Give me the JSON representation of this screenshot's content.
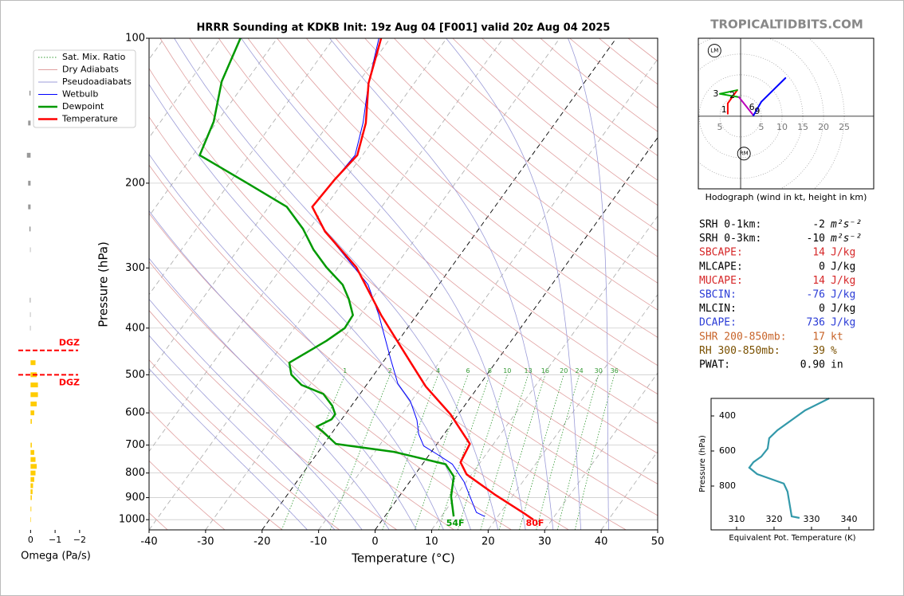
{
  "brand": "TROPICALTIDBITS.COM",
  "chart_data": [
    {
      "type": "skewt",
      "title": "HRRR Sounding at KDKB Init: 19z Aug 04 [F001] valid 20z Aug 04 2025",
      "xlabel": "Temperature (°C)",
      "ylabel": "Pressure (hPa)",
      "xlim": [
        -40,
        50
      ],
      "ylim": [
        1050,
        100
      ],
      "log_y": true,
      "grid": true,
      "legend": "upper left",
      "xticks": [
        -40,
        -30,
        -20,
        -10,
        0,
        10,
        20,
        30,
        40,
        50
      ],
      "yticks": [
        100,
        200,
        300,
        400,
        500,
        600,
        700,
        800,
        900,
        1000
      ],
      "reference_lines": [
        {
          "name": "Sat. Mix. Ratio",
          "kind": "mixing",
          "color": "#339933",
          "values": [
            1,
            2,
            4,
            6,
            8,
            10,
            13,
            16,
            20,
            24,
            30,
            36
          ]
        },
        {
          "name": "Dry Adiabats",
          "kind": "dry",
          "color": "#e0a0a0",
          "values": [
            -40,
            -30,
            -20,
            -10,
            0,
            10,
            20,
            30,
            40,
            50,
            60,
            70,
            80,
            90,
            100,
            110,
            120,
            130,
            140,
            150,
            160,
            170,
            180,
            190,
            200,
            210,
            220
          ]
        },
        {
          "name": "Pseudoadiabats",
          "kind": "moist",
          "color": "#9c9cd8",
          "values": [
            -15,
            -10,
            -5,
            0,
            5,
            10,
            15,
            20,
            25,
            30,
            35,
            40
          ]
        }
      ],
      "isotherms": {
        "values": [
          -100,
          -90,
          -80,
          -70,
          -60,
          -50,
          -40,
          -30,
          -20,
          -10,
          0,
          10,
          20,
          30,
          40
        ],
        "color": "#aaaaaa",
        "highlight": [
          -20,
          0
        ],
        "highlight_color": "#000000"
      },
      "series": [
        {
          "name": "Wetbulb",
          "color": "#0000ff",
          "width": 1,
          "x": [
            -62,
            -58.1,
            -54,
            -51.3,
            -51.8,
            -52.3,
            -46.9,
            -37.2,
            -32.5,
            -26.7,
            -19.1,
            -14.6,
            -10.2,
            -6.6,
            -4.5,
            -2.1,
            1.3,
            5.3,
            9.6,
            15.7,
            17.7
          ],
          "values": [
            100,
            124,
            150,
            175,
            196,
            224,
            252,
            299,
            325,
            376,
            463,
            522,
            567,
            621,
            664,
            703,
            731,
            767,
            834,
            966,
            985
          ]
        },
        {
          "name": "Dewpoint",
          "color": "#009900",
          "width": 2.5,
          "end_label": "54F",
          "x": [
            -86.5,
            -84.3,
            -80.6,
            -78.8,
            -66.8,
            -56.8,
            -51.1,
            -46.6,
            -42.1,
            -37,
            -34.1,
            -31.3,
            -31.1,
            -32.7,
            -36.5,
            -34.6,
            -31.5,
            -26.5,
            -23.4,
            -21.8,
            -21.8,
            -23.5,
            -21.8,
            -17.9,
            -6.6,
            4.1,
            7.1,
            9.2,
            12.2
          ],
          "values": [
            100,
            123,
            149,
            175,
            200,
            224,
            249,
            275,
            299,
            325,
            348,
            376,
            400,
            425,
            472,
            500,
            525,
            548,
            580,
            604,
            619,
            641,
            656,
            696,
            723,
            767,
            813,
            895,
            985
          ]
        },
        {
          "name": "Temperature",
          "color": "#ff0000",
          "width": 2.5,
          "end_label": "80F",
          "x": [
            -61.6,
            -58.1,
            -53.5,
            -50.9,
            -51.8,
            -52.3,
            -46.9,
            -36.8,
            -26.3,
            -15,
            -9.3,
            -1.4,
            5.8,
            6.5,
            9.1,
            16.6,
            24.5,
            26.7
          ],
          "values": [
            100,
            124,
            150,
            175,
            196,
            224,
            252,
            299,
            376,
            472,
            529,
            604,
            696,
            760,
            805,
            886,
            973,
            1000
          ]
        }
      ]
    },
    {
      "type": "omega",
      "xlabel": "Omega (Pa/s)",
      "xlim": [
        0.5,
        -2.2
      ],
      "ylim": [
        1050,
        100
      ],
      "log_y": true,
      "xticks": [
        0,
        {
          "value": -1,
          "label": "−1"
        },
        {
          "value": -2,
          "label": "−2"
        }
      ],
      "colors": {
        "positive": "#999999",
        "negative": "#ffcc00"
      },
      "pressure": [
        130,
        150,
        175,
        200,
        224,
        249,
        275,
        350,
        375,
        400,
        472,
        500,
        525,
        550,
        575,
        600,
        625,
        700,
        725,
        750,
        775,
        800,
        825,
        850,
        875,
        900,
        950,
        1000
      ],
      "values": [
        0.05,
        0.1,
        0.15,
        0.1,
        0.1,
        0.05,
        0.02,
        0.03,
        0.02,
        0.02,
        -0.2,
        -0.25,
        -0.3,
        -0.3,
        -0.25,
        -0.15,
        -0.05,
        -0.05,
        -0.15,
        -0.2,
        -0.25,
        -0.2,
        -0.15,
        -0.1,
        -0.08,
        -0.05,
        -0.03,
        -0.01
      ],
      "dgz": [
        {
          "pressure": 445,
          "label": "DGZ"
        },
        {
          "pressure": 500,
          "label": "DGZ"
        }
      ],
      "dgz_color": "#ff0000"
    },
    {
      "type": "hodograph",
      "caption": "Hodograph (wind in kt, height in km)",
      "xlim": [
        -10.2,
        32.1
      ],
      "ylim": [
        -17.5,
        18.8
      ],
      "xticks": [
        {
          "value": -5,
          "label": "5"
        },
        5,
        10,
        15,
        20,
        25
      ],
      "u": [
        -3.1,
        -3.1,
        -0.8,
        -5.0,
        -0.4,
        3.1,
        5.0,
        10.8
      ],
      "v": [
        0.6,
        3.1,
        6.3,
        5.4,
        4.6,
        0.2,
        3.5,
        9.2
      ],
      "segment_colors": [
        "#ff0000",
        "#ff0000",
        "#00aa00",
        "#00aa00",
        "#bb00bb",
        "#0000ff",
        "#0000ff"
      ],
      "height_labels": [
        {
          "label": "1",
          "u": -4.0,
          "v": 1.5
        },
        {
          "label": "2",
          "u": -2.0,
          "v": 5.0
        },
        {
          "label": "3",
          "u": -6.0,
          "v": 5.4
        },
        {
          "label": "6",
          "u": 2.7,
          "v": 2.1
        },
        {
          "label": "9",
          "u": 4.0,
          "v": 1.1
        }
      ],
      "storm_motions": [
        {
          "label": "LM",
          "u": -6.3,
          "v": 15.8
        },
        {
          "label": "RM",
          "u": 0.8,
          "v": -9.0
        }
      ]
    },
    {
      "type": "line",
      "xlabel": "Equivalent Pot. Temperature (K)",
      "ylabel": "Pressure (hPa)",
      "xlim": [
        303.2,
        346.6
      ],
      "ylim": [
        1050,
        300
      ],
      "xticks": [
        310,
        320,
        330,
        340
      ],
      "yticks": [
        400,
        600,
        800
      ],
      "color": "#3399aa",
      "x": [
        334.7,
        328.3,
        320.9,
        318.7,
        318.3,
        316.6,
        314.5,
        313.4,
        315.5,
        322.6,
        323.6,
        324.7,
        326.8
      ],
      "values": [
        300,
        368,
        482,
        527,
        586,
        632,
        664,
        695,
        732,
        786,
        832,
        973,
        982
      ]
    }
  ],
  "parameters": [
    {
      "label": "SRH 0-1km:",
      "value": -2,
      "unit": "m²s⁻²",
      "color": "#000000"
    },
    {
      "label": "SRH 0-3km:",
      "value": -10,
      "unit": "m²s⁻²",
      "color": "#000000"
    },
    {
      "label": "SBCAPE:",
      "value": 14,
      "unit": "J/kg",
      "color": "#d62728"
    },
    {
      "label": "MLCAPE:",
      "value": 0,
      "unit": "J/kg",
      "color": "#000000"
    },
    {
      "label": "MUCAPE:",
      "value": 14,
      "unit": "J/kg",
      "color": "#d62728"
    },
    {
      "label": "SBCIN:",
      "value": -76,
      "unit": "J/kg",
      "color": "#2a3bd6"
    },
    {
      "label": "MLCIN:",
      "value": 0,
      "unit": "J/kg",
      "color": "#000000"
    },
    {
      "label": "DCAPE:",
      "value": 736,
      "unit": "J/kg",
      "color": "#2a3bd6"
    },
    {
      "label": "SHR 200-850mb:",
      "value": 17,
      "unit": "kt",
      "color": "#c8642a"
    },
    {
      "label": "RH 300-850mb:",
      "value": 39,
      "unit": "%",
      "color": "#7a5000"
    },
    {
      "label": "PWAT:",
      "value": "0.90",
      "unit": "in",
      "color": "#000000"
    }
  ]
}
